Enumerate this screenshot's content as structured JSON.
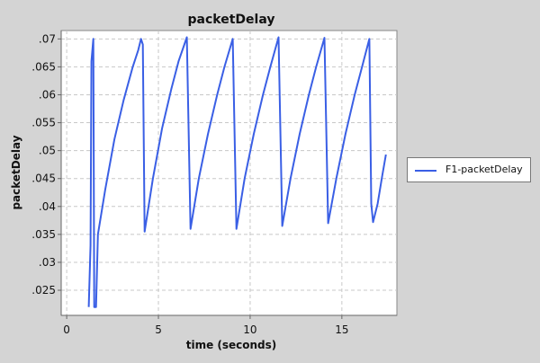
{
  "chart_data": {
    "type": "line",
    "title": "packetDelay",
    "xlabel": "time (seconds)",
    "ylabel": "packetDelay",
    "xlim": [
      -0.3,
      18.0
    ],
    "ylim": [
      0.0205,
      0.0715
    ],
    "xticks": [
      0,
      5,
      10,
      15
    ],
    "xtick_labels": [
      "0",
      "5",
      "10",
      "15"
    ],
    "yticks": [
      0.025,
      0.03,
      0.035,
      0.04,
      0.045,
      0.05,
      0.055,
      0.06,
      0.065,
      0.07
    ],
    "ytick_labels": [
      ".025",
      ".03",
      ".035",
      ".04",
      ".045",
      ".05",
      ".055",
      ".06",
      ".065",
      ".07"
    ],
    "grid": true,
    "legend_position": "right",
    "series": [
      {
        "name": "F1-packetDelay",
        "color": "#3a5fe5",
        "points": [
          [
            1.2,
            0.022
          ],
          [
            1.3,
            0.033
          ],
          [
            1.35,
            0.066
          ],
          [
            1.45,
            0.07
          ],
          [
            1.5,
            0.022
          ],
          [
            1.6,
            0.022
          ],
          [
            1.7,
            0.035
          ],
          [
            2.1,
            0.043
          ],
          [
            2.6,
            0.052
          ],
          [
            3.1,
            0.059
          ],
          [
            3.6,
            0.065
          ],
          [
            3.9,
            0.068
          ],
          [
            4.05,
            0.07
          ],
          [
            4.15,
            0.069
          ],
          [
            4.25,
            0.0355
          ],
          [
            4.7,
            0.045
          ],
          [
            5.2,
            0.054
          ],
          [
            5.7,
            0.061
          ],
          [
            6.1,
            0.066
          ],
          [
            6.55,
            0.0703
          ],
          [
            6.75,
            0.036
          ],
          [
            7.2,
            0.045
          ],
          [
            7.7,
            0.053
          ],
          [
            8.2,
            0.06
          ],
          [
            8.6,
            0.065
          ],
          [
            9.05,
            0.07
          ],
          [
            9.25,
            0.036
          ],
          [
            9.7,
            0.045
          ],
          [
            10.2,
            0.053
          ],
          [
            10.7,
            0.06
          ],
          [
            11.1,
            0.065
          ],
          [
            11.55,
            0.0703
          ],
          [
            11.75,
            0.0365
          ],
          [
            12.2,
            0.045
          ],
          [
            12.7,
            0.053
          ],
          [
            13.2,
            0.06
          ],
          [
            13.6,
            0.065
          ],
          [
            14.05,
            0.0702
          ],
          [
            14.25,
            0.037
          ],
          [
            14.7,
            0.045
          ],
          [
            15.2,
            0.053
          ],
          [
            15.7,
            0.06
          ],
          [
            16.1,
            0.065
          ],
          [
            16.5,
            0.07
          ],
          [
            16.6,
            0.0405
          ],
          [
            16.7,
            0.0372
          ],
          [
            16.95,
            0.0405
          ],
          [
            17.2,
            0.0455
          ],
          [
            17.4,
            0.0493
          ]
        ]
      }
    ]
  }
}
